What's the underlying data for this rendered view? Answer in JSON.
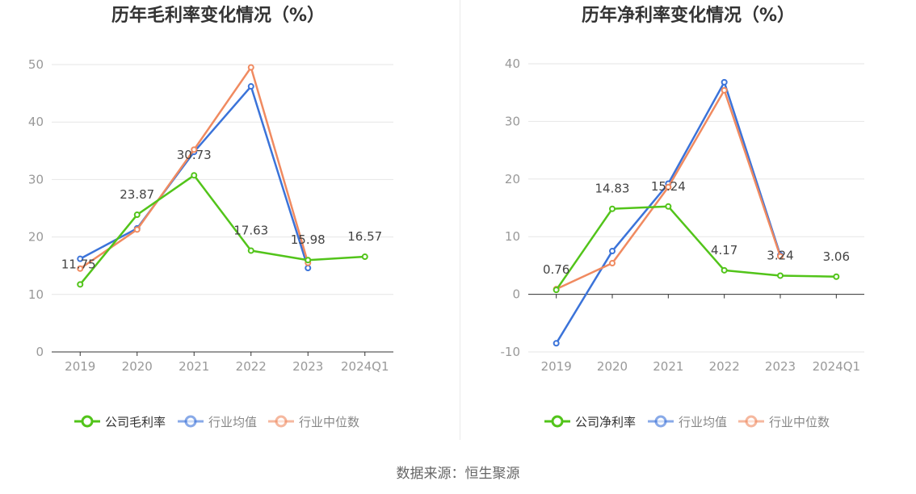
{
  "colors": {
    "company": "#52c41a",
    "industry_avg": "#3b73d9",
    "industry_median": "#f08a60",
    "grid": "#e6e6e6",
    "axis": "#333333",
    "tick_text": "#999999",
    "label_text": "#444444",
    "title_text": "#333333"
  },
  "source": "数据来源：恒生聚源",
  "chart_data": [
    {
      "type": "line",
      "title": "历年毛利率变化情况（%）",
      "categories": [
        "2019",
        "2020",
        "2021",
        "2022",
        "2023",
        "2024Q1"
      ],
      "ylim": [
        0,
        50
      ],
      "yticks": [
        0,
        10,
        20,
        30,
        40,
        50
      ],
      "series": [
        {
          "name": "公司毛利率",
          "key": "company",
          "values": [
            11.75,
            23.87,
            30.73,
            17.63,
            15.98,
            16.57
          ],
          "labels": [
            "11.75",
            "23.87",
            "30.73",
            "17.63",
            "15.98",
            "16.57"
          ]
        },
        {
          "name": "行业均值",
          "key": "industry_avg",
          "values": [
            16.2,
            21.5,
            34.8,
            46.2,
            14.6,
            null
          ]
        },
        {
          "name": "行业中位数",
          "key": "industry_median",
          "values": [
            14.5,
            21.3,
            35.2,
            49.5,
            15.5,
            null
          ]
        }
      ]
    },
    {
      "type": "line",
      "title": "历年净利率变化情况（%）",
      "categories": [
        "2019",
        "2020",
        "2021",
        "2022",
        "2023",
        "2024Q1"
      ],
      "ylim": [
        -10,
        40
      ],
      "yticks": [
        -10,
        0,
        10,
        20,
        30,
        40
      ],
      "series": [
        {
          "name": "公司净利率",
          "key": "company",
          "values": [
            0.76,
            14.83,
            15.24,
            4.17,
            3.24,
            3.06
          ],
          "labels": [
            "0.76",
            "14.83",
            "15.24",
            "4.17",
            "3.24",
            "3.06"
          ]
        },
        {
          "name": "行业均值",
          "key": "industry_avg",
          "values": [
            -8.5,
            7.5,
            19.2,
            36.8,
            6.8,
            null
          ]
        },
        {
          "name": "行业中位数",
          "key": "industry_median",
          "values": [
            0.9,
            5.4,
            18.6,
            35.4,
            6.6,
            null
          ]
        }
      ]
    }
  ]
}
